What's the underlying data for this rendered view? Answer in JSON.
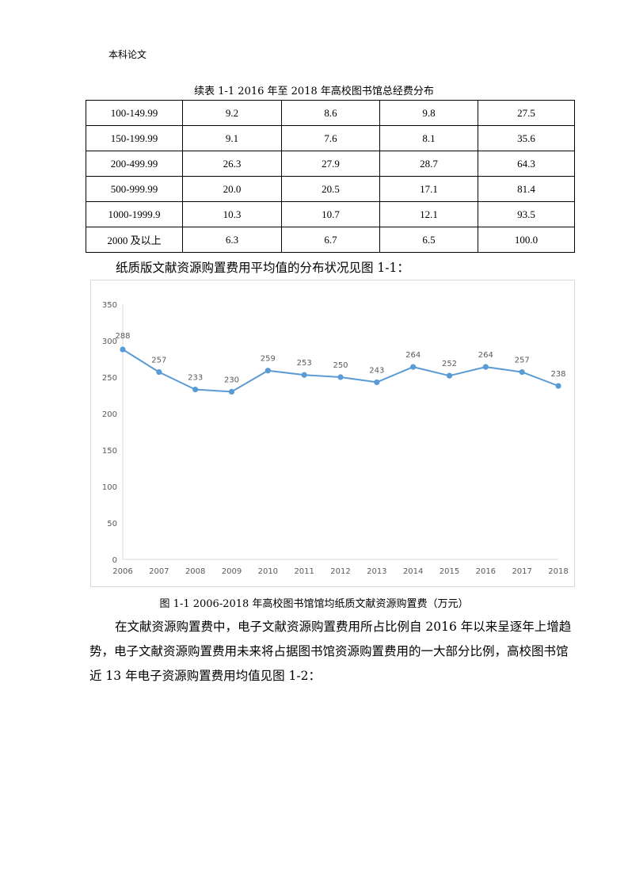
{
  "page": {
    "header": "本科论文",
    "table_caption": "续表 1-1 2016 年至 2018 年高校图书馆总经费分布",
    "table_rows": [
      [
        "100-149.99",
        "9.2",
        "8.6",
        "9.8",
        "27.5"
      ],
      [
        "150-199.99",
        "9.1",
        "7.6",
        "8.1",
        "35.6"
      ],
      [
        "200-499.99",
        "26.3",
        "27.9",
        "28.7",
        "64.3"
      ],
      [
        "500-999.99",
        "20.0",
        "20.5",
        "17.1",
        "81.4"
      ],
      [
        "1000-1999.9",
        "10.3",
        "10.7",
        "12.1",
        "93.5"
      ],
      [
        "2000 及以上",
        "6.3",
        "6.7",
        "6.5",
        "100.0"
      ]
    ],
    "paragraph_1": "纸质版文献资源购置费用平均值的分布状况见图 1-1：",
    "figure_caption": "图 1-1 2006-2018 年高校图书馆馆均纸质文献资源购置费（万元）",
    "paragraph_2": "在文献资源购置费中，电子文献资源购置费用所占比例自 2016 年以来呈逐年上增趋势，电子文献资源购置费用未来将占据图书馆资源购置费用的一大部分比例，高校图书馆近 13 年电子资源购置费用均值见图 1-2："
  },
  "chart_data": {
    "type": "line",
    "categories": [
      "2006",
      "2007",
      "2008",
      "2009",
      "2010",
      "2011",
      "2012",
      "2013",
      "2014",
      "2015",
      "2016",
      "2017",
      "2018"
    ],
    "values": [
      288,
      257,
      233,
      230,
      259,
      253,
      250,
      243,
      264,
      252,
      264,
      257,
      238
    ],
    "ylim": [
      0,
      350
    ],
    "yticks": [
      0,
      50,
      100,
      150,
      200,
      250,
      300,
      350
    ],
    "data_labels": true,
    "grid": false,
    "colors": {
      "line": "#5b9bd5",
      "axis": "#d9d9d9",
      "tick_text": "#595959"
    }
  }
}
